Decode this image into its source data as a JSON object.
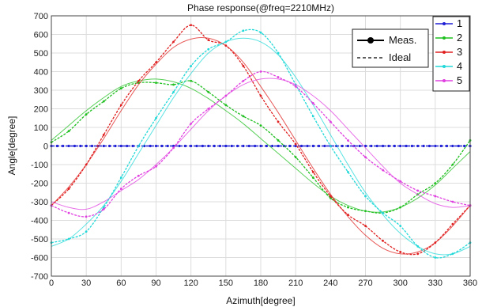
{
  "chart_data": {
    "type": "line",
    "title": "Phase response(@freq=2210MHz)",
    "xlabel": "Azimuth[degree]",
    "ylabel": "Angle[degree]",
    "xlim": [
      0,
      360
    ],
    "ylim": [
      -700,
      700
    ],
    "xticks": [
      0,
      30,
      60,
      90,
      120,
      150,
      180,
      210,
      240,
      270,
      300,
      330,
      360
    ],
    "yticks": [
      700,
      600,
      500,
      400,
      300,
      200,
      100,
      0,
      -100,
      -200,
      -300,
      -400,
      -500,
      -600,
      -700
    ],
    "grid": true,
    "style_legend": {
      "position": "top-center-right",
      "entries": [
        {
          "label": "Meas.",
          "style": "solid-marker"
        },
        {
          "label": "Ideal",
          "style": "dashed"
        }
      ]
    },
    "series_legend_position": "top-right",
    "x": [
      0,
      15,
      30,
      45,
      60,
      75,
      90,
      105,
      120,
      135,
      150,
      165,
      180,
      195,
      210,
      225,
      240,
      255,
      270,
      285,
      300,
      315,
      330,
      345,
      360
    ],
    "series": [
      {
        "name": "1",
        "color": "#1f1fd6",
        "measured": [
          0,
          0,
          0,
          0,
          0,
          0,
          0,
          0,
          0,
          0,
          0,
          0,
          0,
          0,
          0,
          0,
          0,
          0,
          0,
          0,
          0,
          0,
          0,
          0,
          0
        ],
        "ideal": [
          0,
          0,
          0,
          0,
          0,
          0,
          0,
          0,
          0,
          0,
          0,
          0,
          0,
          0,
          0,
          0,
          0,
          0,
          0,
          0,
          0,
          0,
          0,
          0,
          0
        ]
      },
      {
        "name": "2",
        "color": "#1fbf1f",
        "measured": [
          20,
          80,
          170,
          240,
          310,
          340,
          340,
          330,
          350,
          290,
          220,
          160,
          110,
          30,
          -60,
          -170,
          -280,
          -330,
          -350,
          -360,
          -330,
          -260,
          -200,
          -100,
          30
        ],
        "ideal": [
          30,
          110,
          190,
          260,
          320,
          350,
          360,
          345,
          310,
          255,
          190,
          120,
          40,
          -40,
          -120,
          -200,
          -270,
          -320,
          -350,
          -355,
          -330,
          -280,
          -210,
          -120,
          -30
        ]
      },
      {
        "name": "3",
        "color": "#e02020",
        "measured": [
          -320,
          -230,
          -100,
          60,
          220,
          350,
          450,
          560,
          650,
          570,
          540,
          430,
          270,
          130,
          10,
          -140,
          -270,
          -370,
          -430,
          -510,
          -570,
          -580,
          -520,
          -420,
          -320
        ],
        "ideal": [
          -320,
          -220,
          -100,
          40,
          190,
          330,
          440,
          530,
          575,
          580,
          540,
          450,
          320,
          180,
          30,
          -120,
          -260,
          -380,
          -480,
          -550,
          -580,
          -570,
          -520,
          -430,
          -320
        ]
      },
      {
        "name": "4",
        "color": "#22d8d8",
        "measured": [
          -520,
          -500,
          -460,
          -330,
          -170,
          0,
          150,
          290,
          430,
          520,
          560,
          620,
          610,
          500,
          330,
          160,
          0,
          -140,
          -270,
          -360,
          -430,
          -540,
          -600,
          -580,
          -520
        ],
        "ideal": [
          -540,
          -500,
          -420,
          -320,
          -190,
          -40,
          110,
          260,
          390,
          500,
          560,
          580,
          560,
          490,
          370,
          220,
          60,
          -100,
          -250,
          -370,
          -470,
          -540,
          -580,
          -580,
          -540
        ],
        "label_note": ""
      },
      {
        "name": "5",
        "color": "#e040e0",
        "measured": [
          -320,
          -360,
          -380,
          -340,
          -230,
          -160,
          -110,
          -10,
          120,
          200,
          270,
          350,
          400,
          370,
          320,
          230,
          130,
          30,
          -60,
          -130,
          -190,
          -240,
          -270,
          -300,
          -320
        ],
        "ideal": [
          -300,
          -330,
          -340,
          -300,
          -240,
          -180,
          -100,
          -10,
          90,
          190,
          270,
          330,
          360,
          360,
          330,
          270,
          190,
          90,
          -10,
          -110,
          -200,
          -260,
          -310,
          -330,
          -320
        ]
      }
    ]
  }
}
